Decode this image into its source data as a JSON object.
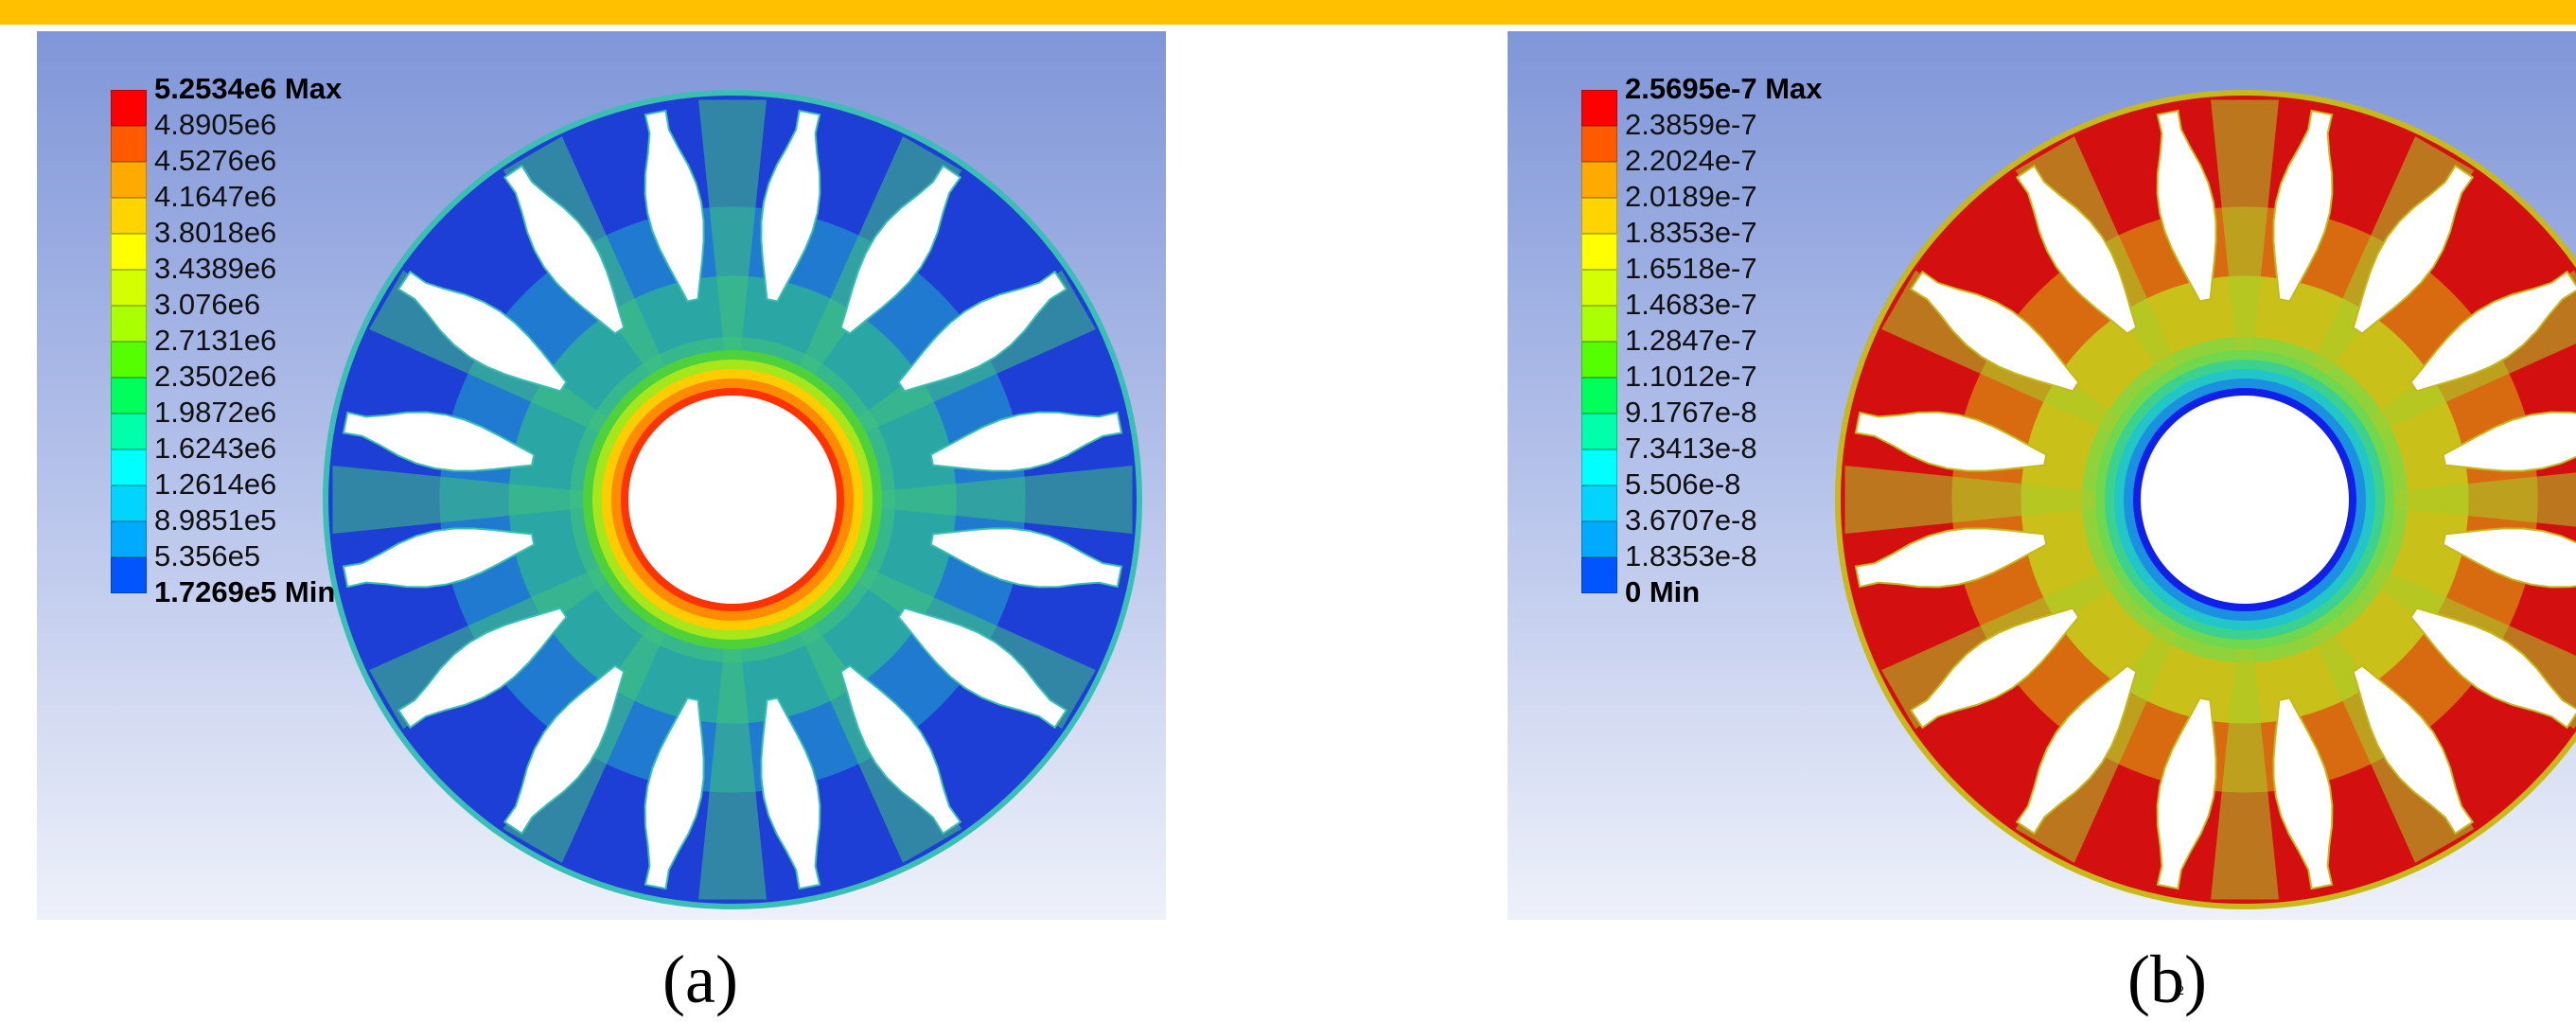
{
  "panels": [
    {
      "id": "a",
      "caption": "(a)",
      "scale_colors": [
        "#ff0000",
        "#ff5a00",
        "#ffaa00",
        "#ffd400",
        "#ffff00",
        "#d4ff00",
        "#aaff00",
        "#55ff00",
        "#00ff5a",
        "#00ffaa",
        "#00ffff",
        "#00d4ff",
        "#00aaff",
        "#0055ff",
        "#0000ff"
      ],
      "legend": [
        {
          "label": "5.2534e6 Max",
          "bold": true
        },
        {
          "label": "4.8905e6",
          "bold": false
        },
        {
          "label": "4.5276e6",
          "bold": false
        },
        {
          "label": "4.1647e6",
          "bold": false
        },
        {
          "label": "3.8018e6",
          "bold": false
        },
        {
          "label": "3.4389e6",
          "bold": false
        },
        {
          "label": "3.076e6",
          "bold": false
        },
        {
          "label": "2.7131e6",
          "bold": false
        },
        {
          "label": "2.3502e6",
          "bold": false
        },
        {
          "label": "1.9872e6",
          "bold": false
        },
        {
          "label": "1.6243e6",
          "bold": false
        },
        {
          "label": "1.2614e6",
          "bold": false
        },
        {
          "label": "8.9851e5",
          "bold": false
        },
        {
          "label": "5.356e5",
          "bold": false
        },
        {
          "label": "1.7269e5 Min",
          "bold": true
        }
      ],
      "model_colors": {
        "hub_ring": [
          "#ff3300",
          "#ff8c00",
          "#ffcc00",
          "#a8e61c",
          "#4ed13a"
        ],
        "hub_body": "#36b88c",
        "spoke": "#2aa7a4",
        "spoke_inner": "#3fc17c",
        "outer": "#1e3fd6",
        "outer_mid": "#1f7ad0",
        "rim": "#3bbfb5"
      }
    },
    {
      "id": "b",
      "caption": "(b)",
      "caption_mark": "2",
      "scale_colors": [
        "#ff0000",
        "#ff5a00",
        "#ffaa00",
        "#ffd400",
        "#ffff00",
        "#d4ff00",
        "#aaff00",
        "#55ff00",
        "#00ff5a",
        "#00ffaa",
        "#00ffff",
        "#00d4ff",
        "#00aaff",
        "#0055ff",
        "#0000ff"
      ],
      "legend": [
        {
          "label": "2.5695e-7 Max",
          "bold": true
        },
        {
          "label": "2.3859e-7",
          "bold": false
        },
        {
          "label": "2.2024e-7",
          "bold": false
        },
        {
          "label": "2.0189e-7",
          "bold": false
        },
        {
          "label": "1.8353e-7",
          "bold": false
        },
        {
          "label": "1.6518e-7",
          "bold": false
        },
        {
          "label": "1.4683e-7",
          "bold": false
        },
        {
          "label": "1.2847e-7",
          "bold": false
        },
        {
          "label": "1.1012e-7",
          "bold": false
        },
        {
          "label": "9.1767e-8",
          "bold": false
        },
        {
          "label": "7.3413e-8",
          "bold": false
        },
        {
          "label": "5.506e-8",
          "bold": false
        },
        {
          "label": "3.6707e-8",
          "bold": false
        },
        {
          "label": "1.8353e-8",
          "bold": false
        },
        {
          "label": "0 Min",
          "bold": true
        }
      ],
      "model_colors": {
        "hub_ring": [
          "#1020e8",
          "#1b8fe0",
          "#22c6c8",
          "#3cd18e",
          "#6fd84e"
        ],
        "hub_body": "#8fd23a",
        "spoke": "#c9c01a",
        "spoke_inner": "#a8cc2a",
        "outer": "#d40f0f",
        "outer_mid": "#d86a10",
        "rim": "#c7b81b"
      }
    }
  ]
}
